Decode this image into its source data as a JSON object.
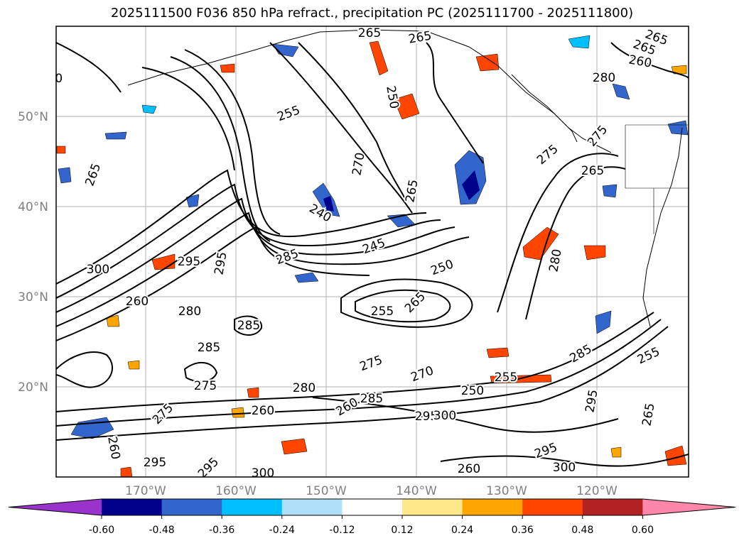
{
  "title": "2025111500 F036 850 hPa refract., precipitation PC (2025111700 - 2025111800)",
  "map": {
    "lat_labels": [
      "50°N",
      "40°N",
      "30°N",
      "20°N"
    ],
    "lon_labels": [
      "170°W",
      "160°W",
      "150°W",
      "140°W",
      "130°W",
      "120°W"
    ],
    "gridlines": true,
    "contour_labels": [
      "265",
      "265",
      "265",
      "260",
      "265",
      "255",
      "260",
      "250",
      "265",
      "270",
      "280",
      "275",
      "265",
      "265",
      "275",
      "240",
      "245",
      "285",
      "295",
      "300",
      "295",
      "260",
      "250",
      "255",
      "265",
      "280",
      "285",
      "280",
      "285",
      "275",
      "275",
      "260",
      "270",
      "250",
      "255",
      "260",
      "285",
      "280",
      "275",
      "285",
      "260",
      "295",
      "300",
      "295",
      "295",
      "295",
      "300",
      "295",
      "265",
      "255",
      "260",
      "300"
    ]
  },
  "colorbar": {
    "tick_labels": [
      "-0.60",
      "-0.48",
      "-0.36",
      "-0.24",
      "-0.12",
      "0.12",
      "0.24",
      "0.36",
      "0.48",
      "0.60"
    ],
    "colors": [
      "#9933cc",
      "#00008b",
      "#3366cc",
      "#00bfff",
      "#b0e0f8",
      "#ffffff",
      "#ffe88a",
      "#ffa500",
      "#ff4500",
      "#b22222",
      "#ff88aa"
    ]
  }
}
